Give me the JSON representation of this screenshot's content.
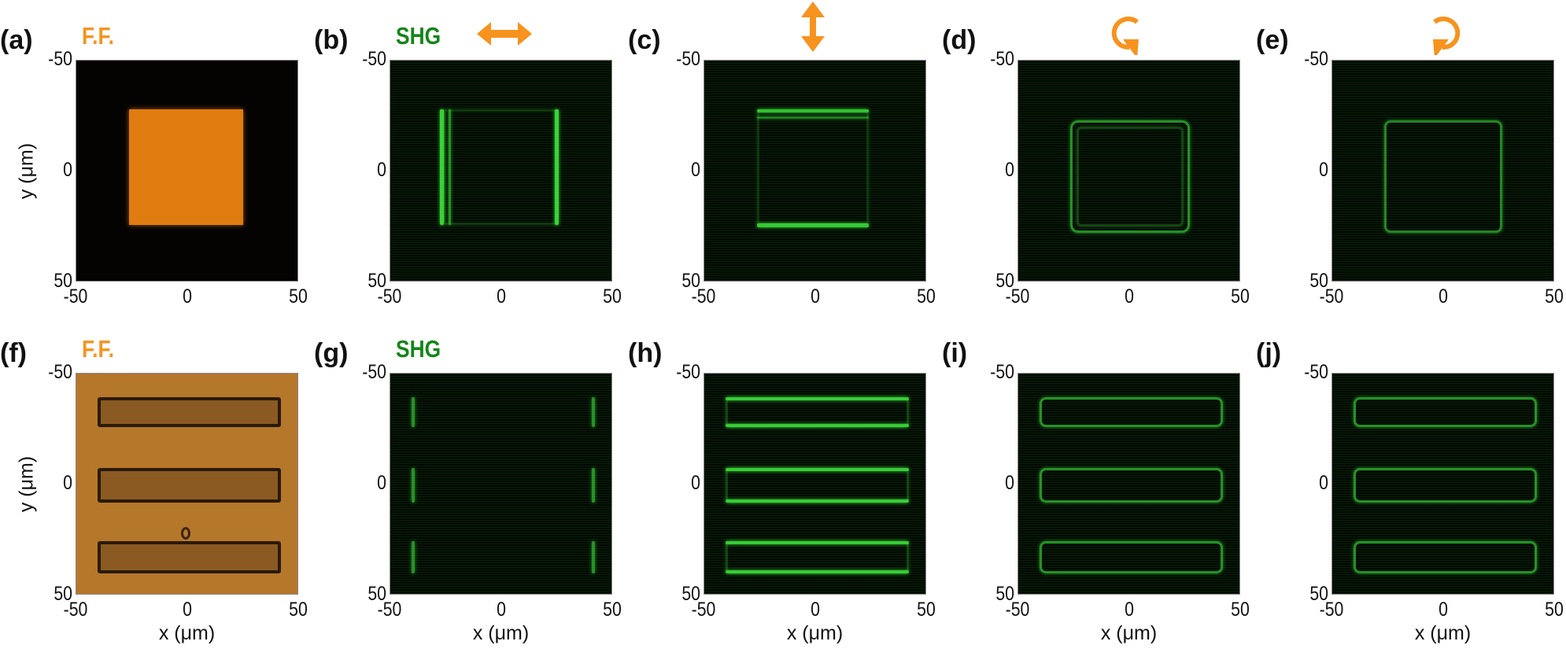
{
  "colors": {
    "fundamental": "#f7931e",
    "shg": "#15851a",
    "ff_image_top": "#e07b10",
    "ff_image_bottom": "#b5772a",
    "shg_signal": "#3ee63e"
  },
  "axes": {
    "x_ticks": [
      "-50",
      "0",
      "50"
    ],
    "y_ticks": [
      "-50",
      "0",
      "50"
    ],
    "x_label": "x (μm)",
    "y_label": "y (μm)"
  },
  "panels": [
    {
      "label": "(a)",
      "title": "F.F.",
      "title_kind": "fundamental",
      "polarization_icon": ""
    },
    {
      "label": "(b)",
      "title": "SHG",
      "title_kind": "shg",
      "polarization_icon": "horizontal-double-arrow-icon"
    },
    {
      "label": "(c)",
      "title": "",
      "title_kind": "",
      "polarization_icon": "vertical-double-arrow-icon"
    },
    {
      "label": "(d)",
      "title": "",
      "title_kind": "",
      "polarization_icon": "clockwise-circular-arrow-icon"
    },
    {
      "label": "(e)",
      "title": "",
      "title_kind": "",
      "polarization_icon": "counterclockwise-circular-arrow-icon"
    },
    {
      "label": "(f)",
      "title": "F.F.",
      "title_kind": "fundamental",
      "polarization_icon": ""
    },
    {
      "label": "(g)",
      "title": "SHG",
      "title_kind": "shg",
      "polarization_icon": ""
    },
    {
      "label": "(h)",
      "title": "",
      "title_kind": "",
      "polarization_icon": ""
    },
    {
      "label": "(i)",
      "title": "",
      "title_kind": "",
      "polarization_icon": ""
    },
    {
      "label": "(j)",
      "title": "",
      "title_kind": "",
      "polarization_icon": ""
    }
  ]
}
